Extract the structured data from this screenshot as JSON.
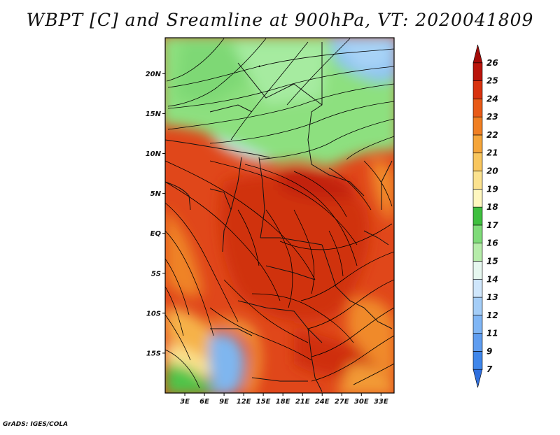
{
  "title": "WBPT [C] and Sreamline at 900hPa, VT: 2020041809",
  "credit": "GrADS: IGES/COLA",
  "map": {
    "lat_ticks": [
      "20N",
      "15N",
      "10N",
      "5N",
      "EQ",
      "5S",
      "10S",
      "15S"
    ],
    "lon_ticks": [
      "3E",
      "6E",
      "9E",
      "12E",
      "15E",
      "18E",
      "21E",
      "24E",
      "27E",
      "30E",
      "33E"
    ],
    "lat_range": [
      -20,
      24.5
    ],
    "lon_range": [
      0,
      35
    ]
  },
  "colorbar": {
    "labels": [
      "7",
      "9",
      "11",
      "12",
      "13",
      "14",
      "15",
      "16",
      "17",
      "18",
      "19",
      "20",
      "21",
      "22",
      "23",
      "24",
      "25",
      "26"
    ],
    "colors": [
      "#2f6fde",
      "#3f86ea",
      "#5f9df0",
      "#80b6f5",
      "#a4cdf7",
      "#cfe6fb",
      "#e6f7ef",
      "#b6ecaa",
      "#7fdb79",
      "#3fbf3f",
      "#fff7bf",
      "#fbe28f",
      "#f8c65e",
      "#f5a53a",
      "#f07f22",
      "#e85a17",
      "#d8320f",
      "#b9140b",
      "#a30b08"
    ]
  }
}
